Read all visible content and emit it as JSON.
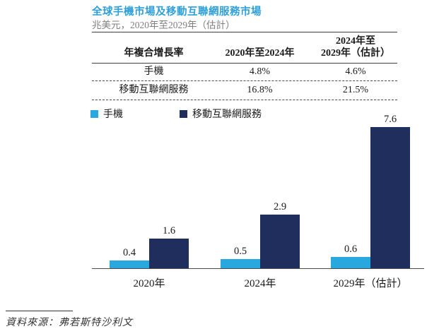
{
  "title": "全球手機市場及移動互聯網服務市場",
  "subtitle": "兆美元，2020年至2029年（估計）",
  "table": {
    "col1_header": "年複合增長率",
    "col2_header": "2020年至2024年",
    "col3_header_line1": "2024年至",
    "col3_header_line2": "2029年（估計）",
    "rows": [
      {
        "label": "手機",
        "v1": "4.8%",
        "v2": "4.6%"
      },
      {
        "label": "移動互聯網服務",
        "v1": "16.8%",
        "v2": "21.5%"
      }
    ]
  },
  "legend": [
    {
      "label": "手機",
      "color": "#29A8E0"
    },
    {
      "label": "移動互聯網服務",
      "color": "#1F2E5C"
    }
  ],
  "chart_data": {
    "type": "bar",
    "title": "全球手機市場及移動互聯網服務市場",
    "unit_note": "兆美元，2020年至2029年（估計）",
    "categories": [
      "2020年",
      "2024年",
      "2029年（估計）"
    ],
    "series": [
      {
        "name": "手機",
        "values": [
          0.4,
          0.5,
          0.6
        ],
        "color": "#29A8E0"
      },
      {
        "name": "移動互聯網服務",
        "values": [
          1.6,
          2.9,
          7.6
        ],
        "color": "#1F2E5C"
      }
    ],
    "ylim": [
      0,
      8
    ],
    "grid": false,
    "y_axis_shown": false,
    "legend_position": "top-left",
    "data_labels": true
  },
  "colors": {
    "title_blue": "#2E9FD9",
    "subtitle_gray": "#7f7f7f",
    "phone_bar": "#29A8E0",
    "internet_bar": "#1F2E5C",
    "axis_line": "#4d4d4d"
  },
  "source": "資料來源：弗若斯特沙利文"
}
